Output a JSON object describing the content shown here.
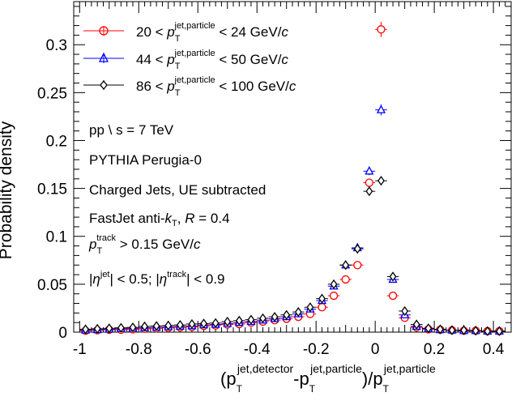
{
  "chart_data": {
    "type": "scatter",
    "title": "",
    "xlabel": {
      "main": "(p",
      "sub1": "T",
      "sup1": "jet,detector",
      "mid": "-p",
      "sub2": "T",
      "sup2": "jet,particle",
      "tail": ")/p",
      "sub3": "T",
      "sup3": "jet,particle"
    },
    "ylabel": "Probability density",
    "xlim": [
      -1.02,
      0.46
    ],
    "ylim": [
      0,
      0.345
    ],
    "xticks": [
      -1,
      -0.8,
      -0.6,
      -0.4,
      -0.2,
      0,
      0.2,
      0.4
    ],
    "xtick_labels": [
      "-1",
      "-0.8",
      "-0.6",
      "-0.4",
      "-0.2",
      "0",
      "0.2",
      "0.4"
    ],
    "yticks": [
      0,
      0.05,
      0.1,
      0.15,
      0.2,
      0.25,
      0.3
    ],
    "ytick_labels": [
      "0",
      "0.05",
      "0.1",
      "0.15",
      "0.2",
      "0.25",
      "0.3"
    ],
    "legend": {
      "placement": "top-left",
      "entries": [
        {
          "lo": "20",
          "hi": "24",
          "var": "p",
          "sub": "T",
          "sup": "jet,particle",
          "unit": "GeV/",
          "c": "c"
        },
        {
          "lo": "44",
          "hi": "50",
          "var": "p",
          "sub": "T",
          "sup": "jet,particle",
          "unit": "GeV/",
          "c": "c"
        },
        {
          "lo": "86",
          "hi": "100",
          "var": "p",
          "sub": "T",
          "sup": "jet,particle",
          "unit": "GeV/",
          "c": "c"
        }
      ]
    },
    "annotations": {
      "line1": "pp \\ s = 7 TeV",
      "line2": "PYTHIA Perugia-0",
      "line3": "Charged Jets, UE subtracted",
      "line4_a": "FastJet anti-",
      "line4_k": "k",
      "line4_ksub": "T",
      "line4_b": ", ",
      "line4_R": "R",
      "line4_c": " = 0.4",
      "line5_p": "p",
      "line5_sub": "T",
      "line5_sup": "track",
      "line5_rest": " > 0.15 GeV/",
      "line5_c": "c",
      "line6_a": "|",
      "line6_eta1": "η",
      "line6_sup1": "jet",
      "line6_b": "| < 0.5; |",
      "line6_eta2": "η",
      "line6_sup2": "track",
      "line6_c": "| < 0.9"
    },
    "series": [
      {
        "name": "20-24",
        "color": "#ff0000",
        "marker": "open-circle",
        "x": [
          -0.98,
          -0.94,
          -0.9,
          -0.86,
          -0.82,
          -0.78,
          -0.74,
          -0.7,
          -0.66,
          -0.62,
          -0.58,
          -0.54,
          -0.5,
          -0.46,
          -0.42,
          -0.38,
          -0.34,
          -0.3,
          -0.26,
          -0.22,
          -0.18,
          -0.14,
          -0.1,
          -0.06,
          -0.02,
          0.02,
          0.06,
          0.1,
          0.14,
          0.18,
          0.22,
          0.26,
          0.3,
          0.34,
          0.38,
          0.42
        ],
        "y": [
          0.0015,
          0.002,
          0.0025,
          0.0025,
          0.003,
          0.0035,
          0.004,
          0.0045,
          0.005,
          0.0055,
          0.0065,
          0.007,
          0.008,
          0.0085,
          0.01,
          0.011,
          0.0125,
          0.014,
          0.016,
          0.019,
          0.026,
          0.038,
          0.055,
          0.07,
          0.156,
          0.316,
          0.038,
          0.015,
          0.005,
          0.003,
          0.0025,
          0.002,
          0.0015,
          0.0015,
          0.001,
          0.001
        ]
      },
      {
        "name": "44-50",
        "color": "#0000ff",
        "marker": "open-triangle",
        "x": [
          -0.98,
          -0.94,
          -0.9,
          -0.86,
          -0.82,
          -0.78,
          -0.74,
          -0.7,
          -0.66,
          -0.62,
          -0.58,
          -0.54,
          -0.5,
          -0.46,
          -0.42,
          -0.38,
          -0.34,
          -0.3,
          -0.26,
          -0.22,
          -0.18,
          -0.14,
          -0.1,
          -0.06,
          -0.02,
          0.02,
          0.06,
          0.1,
          0.14,
          0.18,
          0.22,
          0.26,
          0.3,
          0.34,
          0.38,
          0.42
        ],
        "y": [
          0.002,
          0.0025,
          0.003,
          0.0035,
          0.004,
          0.0045,
          0.005,
          0.0055,
          0.006,
          0.0065,
          0.0075,
          0.008,
          0.009,
          0.01,
          0.011,
          0.0125,
          0.014,
          0.016,
          0.019,
          0.024,
          0.033,
          0.048,
          0.07,
          0.088,
          0.168,
          0.232,
          0.055,
          0.018,
          0.006,
          0.0035,
          0.0025,
          0.002,
          0.0015,
          0.0015,
          0.001,
          0.001
        ]
      },
      {
        "name": "86-100",
        "color": "#000000",
        "marker": "open-diamond",
        "x": [
          -0.98,
          -0.94,
          -0.9,
          -0.86,
          -0.82,
          -0.78,
          -0.74,
          -0.7,
          -0.66,
          -0.62,
          -0.58,
          -0.54,
          -0.5,
          -0.46,
          -0.42,
          -0.38,
          -0.34,
          -0.3,
          -0.26,
          -0.22,
          -0.18,
          -0.14,
          -0.1,
          -0.06,
          -0.02,
          0.02,
          0.06,
          0.1,
          0.14,
          0.18,
          0.22,
          0.26,
          0.3,
          0.34,
          0.38,
          0.42
        ],
        "y": [
          0.003,
          0.0035,
          0.004,
          0.0045,
          0.005,
          0.006,
          0.0065,
          0.007,
          0.0075,
          0.0085,
          0.009,
          0.0095,
          0.011,
          0.012,
          0.013,
          0.0145,
          0.016,
          0.018,
          0.021,
          0.026,
          0.035,
          0.05,
          0.07,
          0.087,
          0.147,
          0.158,
          0.058,
          0.022,
          0.008,
          0.004,
          0.003,
          0.002,
          0.002,
          0.0015,
          0.001,
          0.001
        ]
      }
    ]
  }
}
